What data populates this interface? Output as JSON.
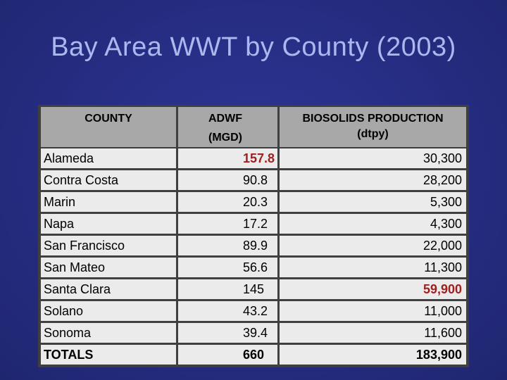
{
  "title": "Bay Area WWT by County (2003)",
  "table": {
    "headers": {
      "county": "COUNTY",
      "adwf_line1": "ADWF",
      "adwf_line2": "(MGD)",
      "biosolids_line1": "BIOSOLIDS PRODUCTION",
      "biosolids_line2": "(dtpy)"
    },
    "rows": [
      {
        "county": "Alameda",
        "adwf": "157.8",
        "biosolids": "30,300"
      },
      {
        "county": "Contra Costa",
        "adwf": "90.8",
        "biosolids": "28,200"
      },
      {
        "county": "Marin",
        "adwf": "20.3",
        "biosolids": "5,300"
      },
      {
        "county": "Napa",
        "adwf": "17.2",
        "biosolids": "4,300"
      },
      {
        "county": "San Francisco",
        "adwf": "89.9",
        "biosolids": "22,000"
      },
      {
        "county": "San Mateo",
        "adwf": "56.6",
        "biosolids": "11,300"
      },
      {
        "county": "Santa Clara",
        "adwf": "145",
        "biosolids": "59,900"
      },
      {
        "county": "Solano",
        "adwf": "43.2",
        "biosolids": "11,000"
      },
      {
        "county": "Sonoma",
        "adwf": "39.4",
        "biosolids": "11,600"
      },
      {
        "county": "TOTALS",
        "adwf": "660",
        "biosolids": "183,900"
      }
    ],
    "highlight_color": "#a02020"
  }
}
